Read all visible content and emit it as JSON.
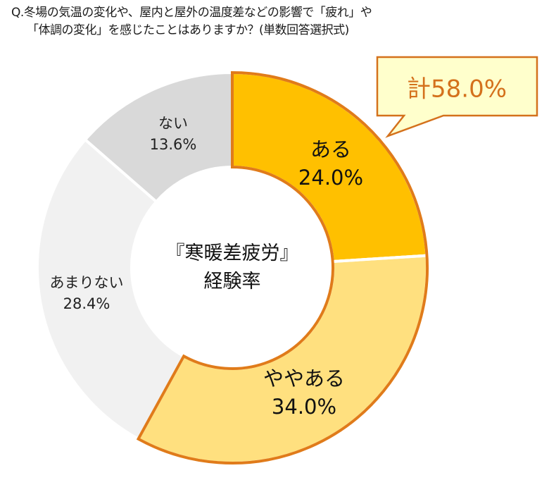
{
  "question": {
    "line1": "Q.冬場の気温の変化や、屋内と屋外の温度差などの影響で「疲れ」や",
    "line2": "「体調の変化」を感じたことはありますか？(単数回答選択式)"
  },
  "center": {
    "line1": "『寒暖差疲労』",
    "line2": "経験率"
  },
  "callout": {
    "text": "計58.0%"
  },
  "colors": {
    "aru": "#ffc000",
    "yaya_aru": "#ffe07f",
    "amari_nai": "#f1f1f1",
    "nai": "#d9d9d9",
    "highlight_border": "#e07b1a",
    "callout_fill": "#ffffcc",
    "callout_border": "#d4711c",
    "callout_text": "#d4711c"
  },
  "segments": [
    {
      "name": "ある",
      "pct": "24.0%"
    },
    {
      "name": "ややある",
      "pct": "34.0%"
    },
    {
      "name": "あまりない",
      "pct": "28.4%"
    },
    {
      "name": "ない",
      "pct": "13.6%"
    }
  ],
  "chart_data": {
    "type": "pie",
    "subtype": "donut",
    "title": "Q.冬場の気温の変化や、屋内と屋外の温度差などの影響で「疲れ」や「体調の変化」を感じたことはありますか？(単数回答選択式)",
    "center_label": "『寒暖差疲労』経験率",
    "categories": [
      "ある",
      "ややある",
      "あまりない",
      "ない"
    ],
    "values": [
      24.0,
      34.0,
      28.4,
      13.6
    ],
    "unit": "%",
    "annotations": [
      {
        "text": "計58.0%",
        "refers_to": [
          "ある",
          "ややある"
        ]
      }
    ],
    "start_angle": "12 o'clock, clockwise",
    "legend": "none (labels inside segments)"
  }
}
